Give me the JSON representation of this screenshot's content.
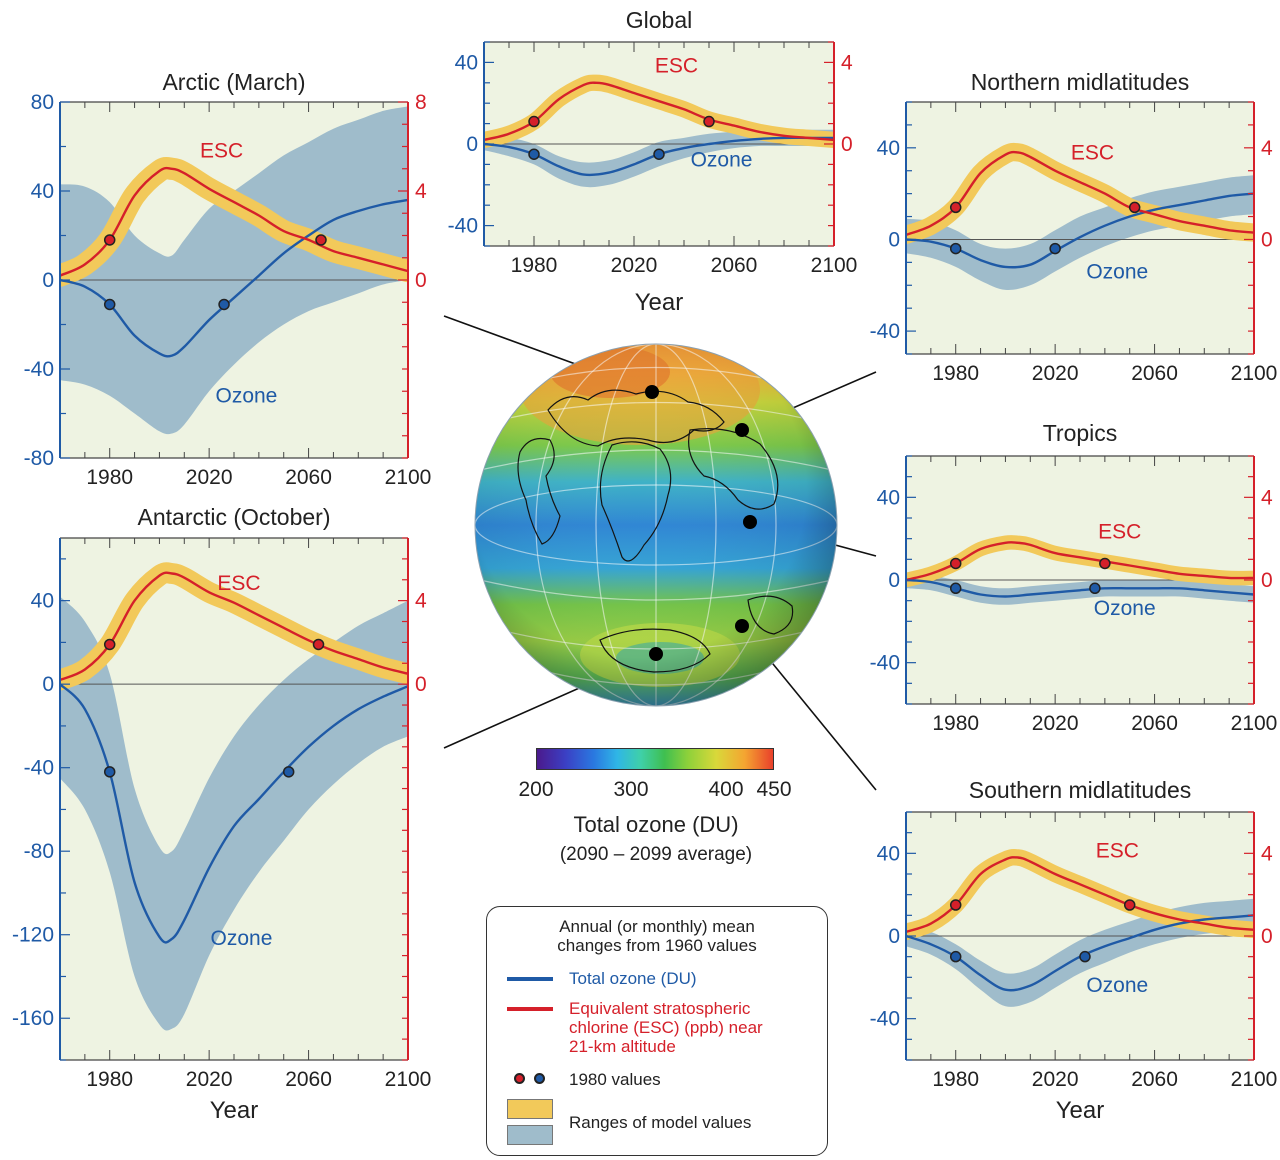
{
  "colors": {
    "plot_bg": "#eef3e2",
    "ozone": "#1f5aa6",
    "ozone_band": "#9fbccb",
    "esc": "#d5202a",
    "esc_band": "#f2c95a",
    "dot_outline": "#222222"
  },
  "globe": {
    "colorbar_ticks": [
      "200",
      "300",
      "400",
      "450"
    ],
    "colorbar_title": "Total ozone (DU)",
    "colorbar_subtitle": "(2090 – 2099 average)"
  },
  "legend": {
    "title_line1": "Annual (or monthly) mean",
    "title_line2": "changes from 1960 values",
    "ozone_label": "Total ozone (DU)",
    "esc_label_line1": "Equivalent stratospheric",
    "esc_label_line2": "chlorine (ESC) (ppb) near",
    "esc_label_line3": "21-km altitude",
    "dots_label": "1980 values",
    "ranges_label": "Ranges of model values"
  },
  "chart_data": [
    {
      "id": "global",
      "type": "line",
      "title": "Global",
      "xlabel": "Year",
      "xlim": [
        1960,
        2100
      ],
      "xticks": [
        1980,
        2020,
        2060,
        2100
      ],
      "ylim_left": [
        -50,
        50
      ],
      "yticks_left": [
        -40,
        0,
        40
      ],
      "ylim_right": [
        -5,
        5
      ],
      "yticks_right": [
        0,
        4
      ],
      "esc_label": "ESC",
      "ozone_label": "Ozone",
      "esc": {
        "x": [
          1960,
          1970,
          1980,
          1990,
          2000,
          2005,
          2010,
          2020,
          2030,
          2040,
          2050,
          2060,
          2070,
          2080,
          2090,
          2100
        ],
        "y": [
          0.2,
          0.5,
          1.1,
          2.2,
          2.9,
          3.0,
          2.9,
          2.5,
          2.1,
          1.7,
          1.2,
          0.9,
          0.6,
          0.4,
          0.3,
          0.2
        ],
        "band": 0.4
      },
      "ozone": {
        "x": [
          1960,
          1970,
          1980,
          1990,
          2000,
          2010,
          2020,
          2030,
          2040,
          2050,
          2060,
          2070,
          2080,
          2090,
          2100
        ],
        "y": [
          0,
          -1.5,
          -5,
          -11,
          -15,
          -14,
          -10,
          -5,
          -2,
          0,
          1.5,
          2.5,
          3,
          3,
          3
        ],
        "band_lo": [
          -3,
          -6,
          -10,
          -17,
          -21,
          -20,
          -16,
          -11,
          -7,
          -4,
          -2,
          -1,
          -1,
          -1,
          -1
        ],
        "band_hi": [
          3,
          3,
          0,
          -6,
          -9,
          -8,
          -4,
          1,
          3,
          5,
          6,
          7,
          7,
          7,
          7
        ]
      },
      "esc_dots": [
        [
          1980,
          1.1
        ],
        [
          2050,
          1.1
        ]
      ],
      "ozone_dots": [
        [
          1980,
          -5
        ],
        [
          2030,
          -5
        ]
      ]
    },
    {
      "id": "arctic",
      "type": "line",
      "title": "Arctic (March)",
      "xlabel": "",
      "xlim": [
        1960,
        2100
      ],
      "xticks": [
        1980,
        2020,
        2060,
        2100
      ],
      "ylim_left": [
        -80,
        80
      ],
      "yticks_left": [
        -80,
        -40,
        0,
        40,
        80
      ],
      "ylim_right": [
        -8,
        8
      ],
      "yticks_right": [
        0,
        4,
        8
      ],
      "esc_label": "ESC",
      "ozone_label": "Ozone",
      "esc": {
        "x": [
          1960,
          1970,
          1980,
          1990,
          2000,
          2005,
          2010,
          2020,
          2030,
          2040,
          2050,
          2060,
          2070,
          2080,
          2090,
          2100
        ],
        "y": [
          0.2,
          0.7,
          1.8,
          3.8,
          4.9,
          5.0,
          4.8,
          4.1,
          3.5,
          2.9,
          2.2,
          1.8,
          1.3,
          1.0,
          0.7,
          0.4
        ],
        "band": 0.5
      },
      "ozone": {
        "x": [
          1960,
          1970,
          1980,
          1990,
          2000,
          2005,
          2010,
          2020,
          2030,
          2040,
          2050,
          2060,
          2070,
          2080,
          2090,
          2100
        ],
        "y": [
          0,
          -3,
          -11,
          -25,
          -33,
          -34,
          -30,
          -18,
          -8,
          2,
          12,
          20,
          27,
          31,
          34,
          36
        ],
        "band_lo": [
          -45,
          -47,
          -52,
          -60,
          -68,
          -69,
          -65,
          -50,
          -38,
          -28,
          -20,
          -14,
          -10,
          -6,
          -2,
          0
        ],
        "band_hi": [
          43,
          42,
          35,
          20,
          12,
          11,
          18,
          32,
          40,
          48,
          56,
          62,
          68,
          72,
          76,
          78
        ]
      },
      "esc_dots": [
        [
          1980,
          1.8
        ],
        [
          2065,
          1.8
        ]
      ],
      "ozone_dots": [
        [
          1980,
          -11
        ],
        [
          2026,
          -11
        ]
      ]
    },
    {
      "id": "antarctic",
      "type": "line",
      "title": "Antarctic (October)",
      "xlabel": "Year",
      "xlim": [
        1960,
        2100
      ],
      "xticks": [
        1980,
        2020,
        2060,
        2100
      ],
      "ylim_left": [
        -180,
        70
      ],
      "yticks_left": [
        -160,
        -120,
        -80,
        -40,
        0,
        40
      ],
      "ylim_right": [
        -18,
        7
      ],
      "yticks_right": [
        0,
        4
      ],
      "esc_label": "ESC",
      "ozone_label": "Ozone",
      "esc": {
        "x": [
          1960,
          1970,
          1980,
          1990,
          2000,
          2005,
          2010,
          2020,
          2030,
          2040,
          2050,
          2060,
          2070,
          2080,
          2090,
          2100
        ],
        "y": [
          0.2,
          0.7,
          1.9,
          4.0,
          5.2,
          5.3,
          5.1,
          4.4,
          3.9,
          3.3,
          2.7,
          2.1,
          1.6,
          1.2,
          0.8,
          0.5
        ],
        "band": 0.5
      },
      "ozone": {
        "x": [
          1960,
          1970,
          1980,
          1990,
          2000,
          2005,
          2010,
          2020,
          2030,
          2040,
          2050,
          2060,
          2070,
          2080,
          2090,
          2100
        ],
        "y": [
          0,
          -12,
          -42,
          -95,
          -121,
          -122,
          -113,
          -88,
          -68,
          -55,
          -42,
          -30,
          -20,
          -12,
          -6,
          -1
        ],
        "band_lo": [
          -45,
          -60,
          -90,
          -140,
          -163,
          -165,
          -158,
          -130,
          -108,
          -90,
          -75,
          -60,
          -48,
          -38,
          -30,
          -25
        ],
        "band_hi": [
          42,
          30,
          5,
          -50,
          -78,
          -80,
          -70,
          -45,
          -25,
          -10,
          2,
          12,
          20,
          28,
          34,
          40
        ]
      },
      "esc_dots": [
        [
          1980,
          1.9
        ],
        [
          2064,
          1.9
        ]
      ],
      "ozone_dots": [
        [
          1980,
          -42
        ],
        [
          2052,
          -42
        ]
      ]
    },
    {
      "id": "north",
      "type": "line",
      "title": "Northern midlatitudes",
      "xlabel": "",
      "xlim": [
        1960,
        2100
      ],
      "xticks": [
        1980,
        2020,
        2060,
        2100
      ],
      "ylim_left": [
        -50,
        60
      ],
      "yticks_left": [
        -40,
        0,
        40
      ],
      "ylim_right": [
        -5,
        6
      ],
      "yticks_right": [
        0,
        4
      ],
      "esc_label": "ESC",
      "ozone_label": "Ozone",
      "esc": {
        "x": [
          1960,
          1970,
          1980,
          1990,
          2000,
          2005,
          2010,
          2020,
          2030,
          2040,
          2050,
          2060,
          2070,
          2080,
          2090,
          2100
        ],
        "y": [
          0.2,
          0.6,
          1.4,
          2.9,
          3.7,
          3.8,
          3.6,
          3.0,
          2.5,
          2.0,
          1.4,
          1.1,
          0.8,
          0.6,
          0.4,
          0.3
        ],
        "band": 0.4
      },
      "ozone": {
        "x": [
          1960,
          1970,
          1980,
          1990,
          2000,
          2010,
          2020,
          2030,
          2040,
          2050,
          2060,
          2070,
          2080,
          2090,
          2100
        ],
        "y": [
          0,
          -1,
          -4,
          -9,
          -12,
          -11,
          -5,
          1,
          6,
          10,
          13,
          15,
          17,
          19,
          20
        ],
        "band_lo": [
          -6,
          -8,
          -12,
          -18,
          -22,
          -20,
          -14,
          -8,
          -3,
          1,
          4,
          6,
          8,
          10,
          11
        ],
        "band_hi": [
          9,
          8,
          4,
          -2,
          -4,
          -2,
          4,
          10,
          14,
          18,
          21,
          23,
          25,
          27,
          28
        ]
      },
      "esc_dots": [
        [
          1980,
          1.4
        ],
        [
          2052,
          1.4
        ]
      ],
      "ozone_dots": [
        [
          1980,
          -4
        ],
        [
          2020,
          -4
        ]
      ]
    },
    {
      "id": "tropics",
      "type": "line",
      "title": "Tropics",
      "xlabel": "",
      "xlim": [
        1960,
        2100
      ],
      "xticks": [
        1980,
        2020,
        2060,
        2100
      ],
      "ylim_left": [
        -60,
        60
      ],
      "yticks_left": [
        -40,
        0,
        40
      ],
      "ylim_right": [
        -6,
        6
      ],
      "yticks_right": [
        0,
        4
      ],
      "esc_label": "ESC",
      "ozone_label": "Ozone",
      "esc": {
        "x": [
          1960,
          1970,
          1980,
          1990,
          2000,
          2005,
          2010,
          2020,
          2030,
          2040,
          2050,
          2060,
          2070,
          2080,
          2090,
          2100
        ],
        "y": [
          0.0,
          0.3,
          0.8,
          1.5,
          1.8,
          1.8,
          1.7,
          1.3,
          1.1,
          0.9,
          0.7,
          0.5,
          0.3,
          0.2,
          0.1,
          0.1
        ],
        "band": 0.35
      },
      "ozone": {
        "x": [
          1960,
          1970,
          1980,
          1990,
          2000,
          2010,
          2020,
          2030,
          2040,
          2050,
          2060,
          2070,
          2080,
          2090,
          2100
        ],
        "y": [
          0,
          -1,
          -4,
          -7,
          -8,
          -7,
          -6,
          -5,
          -4,
          -4,
          -4,
          -4,
          -5,
          -6,
          -7
        ],
        "band_lo": [
          -4,
          -5,
          -8,
          -11,
          -12,
          -11,
          -10,
          -9,
          -8,
          -8,
          -8,
          -8,
          -9,
          -10,
          -11
        ],
        "band_hi": [
          3,
          2,
          0,
          -3,
          -4,
          -3,
          -2,
          -1,
          0,
          0,
          0,
          0,
          -1,
          -2,
          -3
        ]
      },
      "esc_dots": [
        [
          1980,
          0.8
        ],
        [
          2040,
          0.8
        ]
      ],
      "ozone_dots": [
        [
          1980,
          -4
        ],
        [
          2036,
          -4
        ]
      ]
    },
    {
      "id": "south",
      "type": "line",
      "title": "Southern midlatitudes",
      "xlabel": "Year",
      "xlim": [
        1960,
        2100
      ],
      "xticks": [
        1980,
        2020,
        2060,
        2100
      ],
      "ylim_left": [
        -60,
        60
      ],
      "yticks_left": [
        -40,
        0,
        40
      ],
      "ylim_right": [
        -6,
        6
      ],
      "yticks_right": [
        0,
        4
      ],
      "esc_label": "ESC",
      "ozone_label": "Ozone",
      "esc": {
        "x": [
          1960,
          1970,
          1980,
          1990,
          2000,
          2005,
          2010,
          2020,
          2030,
          2040,
          2050,
          2060,
          2070,
          2080,
          2090,
          2100
        ],
        "y": [
          0.2,
          0.6,
          1.5,
          3.0,
          3.7,
          3.8,
          3.6,
          3.0,
          2.5,
          2.0,
          1.5,
          1.1,
          0.8,
          0.6,
          0.4,
          0.3
        ],
        "band": 0.4
      },
      "ozone": {
        "x": [
          1960,
          1970,
          1980,
          1990,
          2000,
          2010,
          2020,
          2030,
          2040,
          2050,
          2060,
          2070,
          2080,
          2090,
          2100
        ],
        "y": [
          0,
          -4,
          -10,
          -19,
          -26,
          -24,
          -17,
          -10,
          -5,
          -1,
          3,
          6,
          8,
          9,
          10
        ],
        "band_lo": [
          -5,
          -9,
          -16,
          -26,
          -34,
          -32,
          -25,
          -18,
          -13,
          -8,
          -4,
          -1,
          1,
          2,
          3
        ],
        "band_hi": [
          5,
          2,
          -4,
          -12,
          -18,
          -16,
          -9,
          -2,
          3,
          7,
          11,
          14,
          16,
          17,
          18
        ]
      },
      "esc_dots": [
        [
          1980,
          1.5
        ],
        [
          2050,
          1.5
        ]
      ],
      "ozone_dots": [
        [
          1980,
          -10
        ],
        [
          2032,
          -10
        ]
      ]
    }
  ]
}
